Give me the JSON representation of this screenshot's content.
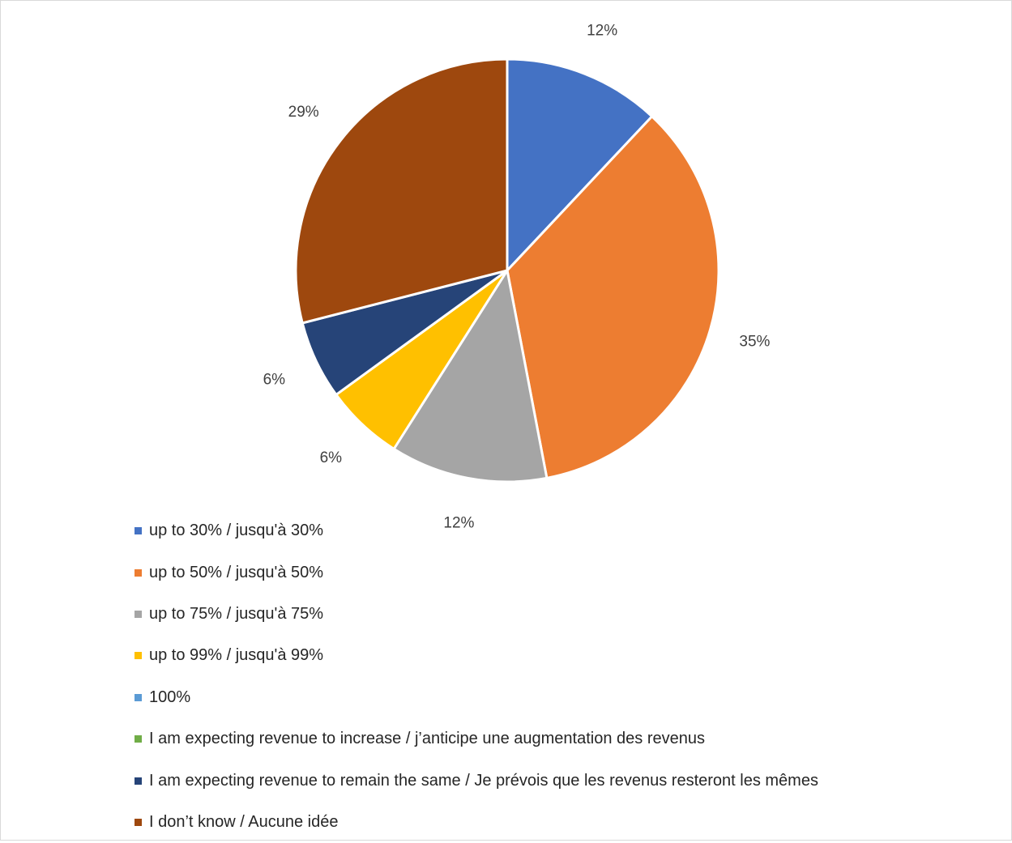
{
  "chart_data": {
    "type": "pie",
    "title": "",
    "categories": [
      "up to 30% / jusqu'à 30%",
      "up to 50% / jusqu'à 50%",
      "up to 75% / jusqu'à 75%",
      "up to 99% / jusqu'à 99%",
      "100%",
      "I am expecting revenue to increase / j’anticipe une augmentation des revenus",
      "I am expecting revenue to remain the same / Je prévois que les revenus resteront les mêmes",
      "I don’t know / Aucune idée"
    ],
    "values": [
      12,
      35,
      12,
      6,
      0,
      0,
      6,
      29
    ],
    "data_labels": [
      "12%",
      "35%",
      "12%",
      "6%",
      "",
      "",
      "6%",
      "29%"
    ],
    "colors": [
      "#4472C4",
      "#ED7D31",
      "#A5A5A5",
      "#FFC000",
      "#5B9BD5",
      "#70AD47",
      "#264478",
      "#9E480E"
    ],
    "legend_position": "bottom-left"
  }
}
